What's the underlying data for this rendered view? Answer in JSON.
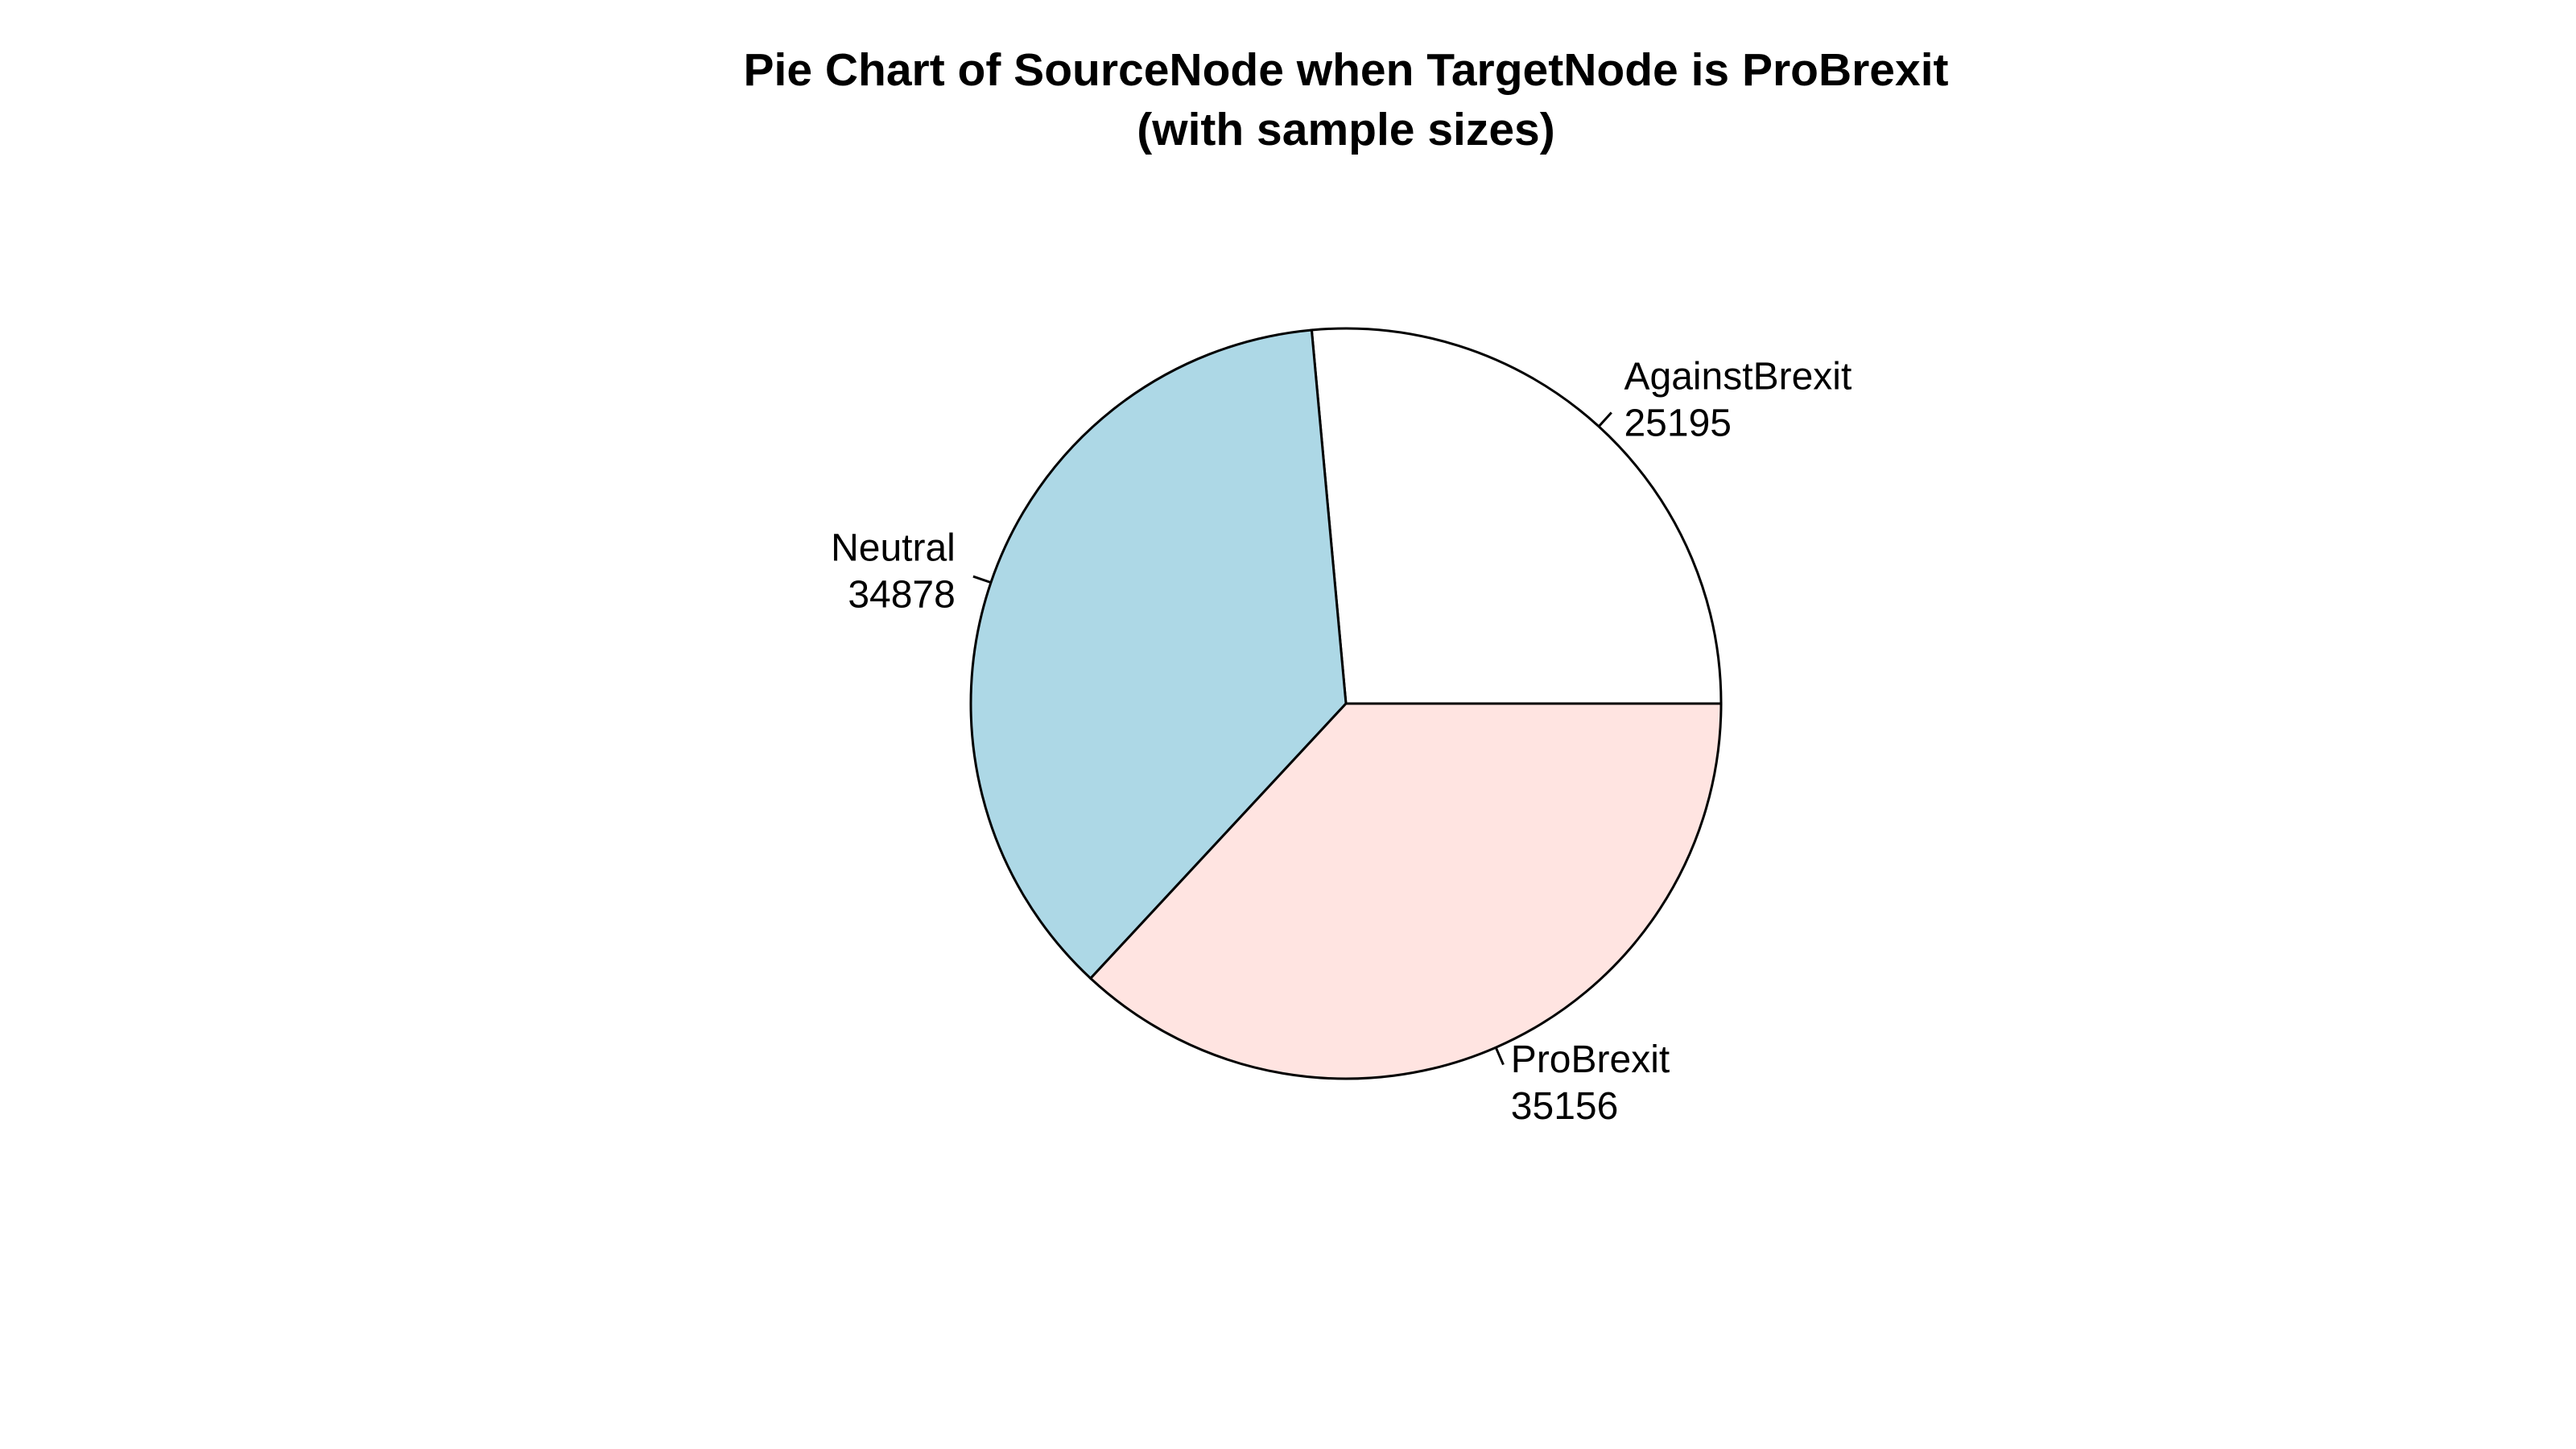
{
  "chart_data": {
    "type": "pie",
    "title": "Pie Chart of SourceNode when TargetNode is ProBrexit",
    "subtitle": "(with sample sizes)",
    "direction": "counterclockwise",
    "start": "3 o'clock",
    "slices": [
      {
        "label": "AgainstBrexit",
        "value": 25195,
        "color": "#FFFFFF"
      },
      {
        "label": "Neutral",
        "value": 34878,
        "color": "#ADD8E6"
      },
      {
        "label": "ProBrexit",
        "value": 35156,
        "color": "#FFE4E1"
      }
    ]
  }
}
